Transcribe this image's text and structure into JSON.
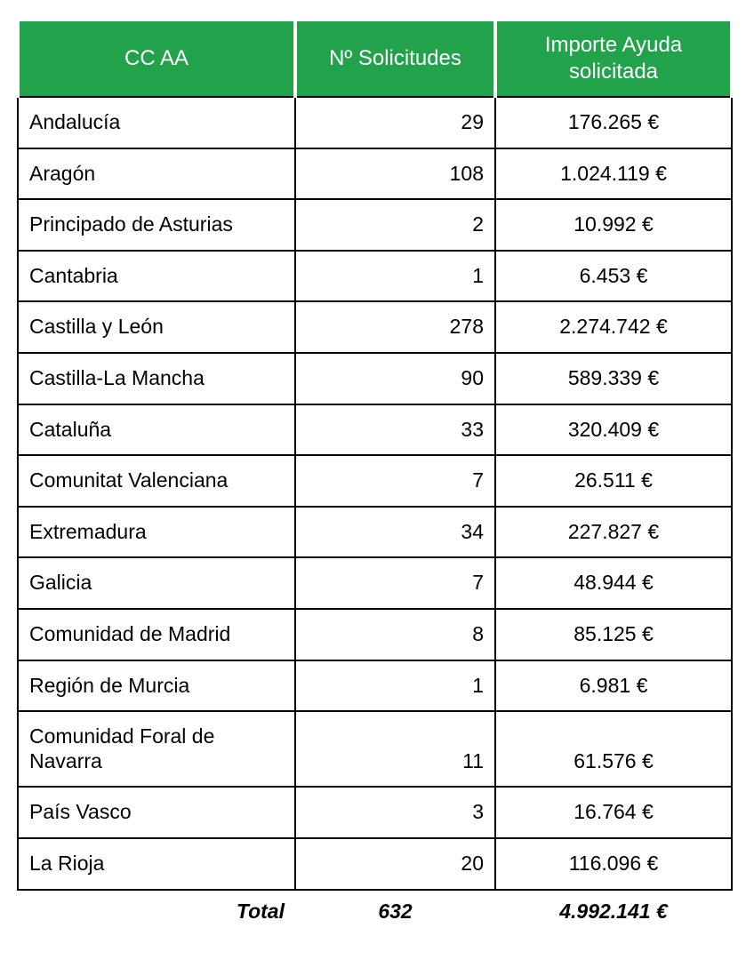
{
  "colors": {
    "header_bg": "#21a24b",
    "header_text": "#ffffff",
    "border": "#000000"
  },
  "chart_data": {
    "type": "table",
    "columns": [
      "CC AA",
      "Nº Solicitudes",
      "Importe Ayuda solicitada"
    ],
    "rows": [
      {
        "region": "Andalucía",
        "solicitudes": "29",
        "importe": "176.265 €"
      },
      {
        "region": "Aragón",
        "solicitudes": "108",
        "importe": "1.024.119 €"
      },
      {
        "region": "Principado de Asturias",
        "solicitudes": "2",
        "importe": "10.992 €"
      },
      {
        "region": "Cantabria",
        "solicitudes": "1",
        "importe": "6.453 €"
      },
      {
        "region": "Castilla y León",
        "solicitudes": "278",
        "importe": "2.274.742 €"
      },
      {
        "region": "Castilla-La Mancha",
        "solicitudes": "90",
        "importe": "589.339 €"
      },
      {
        "region": "Cataluña",
        "solicitudes": "33",
        "importe": "320.409 €"
      },
      {
        "region": "Comunitat Valenciana",
        "solicitudes": "7",
        "importe": "26.511 €"
      },
      {
        "region": "Extremadura",
        "solicitudes": "34",
        "importe": "227.827 €"
      },
      {
        "region": "Galicia",
        "solicitudes": "7",
        "importe": "48.944 €"
      },
      {
        "region": "Comunidad de Madrid",
        "solicitudes": "8",
        "importe": "85.125 €"
      },
      {
        "region": "Región de Murcia",
        "solicitudes": "1",
        "importe": "6.981 €"
      },
      {
        "region": "Comunidad Foral de Navarra",
        "solicitudes": "11",
        "importe": "61.576 €"
      },
      {
        "region": "País Vasco",
        "solicitudes": "3",
        "importe": "16.764 €"
      },
      {
        "region": "La Rioja",
        "solicitudes": "20",
        "importe": "116.096 €"
      }
    ],
    "total": {
      "label": "Total",
      "solicitudes": "632",
      "importe": "4.992.141 €"
    }
  }
}
